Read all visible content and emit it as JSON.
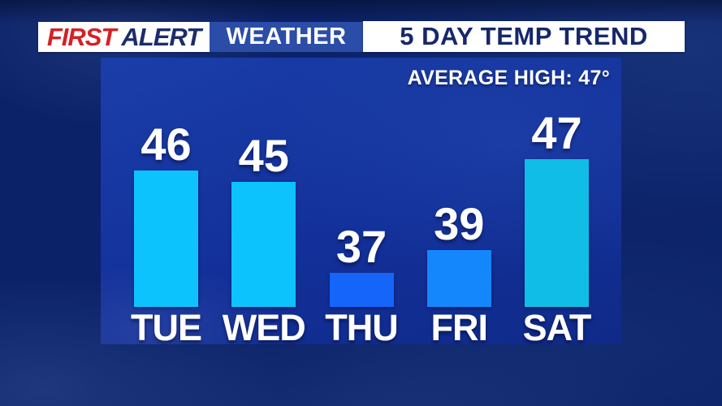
{
  "header": {
    "brand_first": "FIRST",
    "brand_alert": "ALERT",
    "brand_suffix": "WEATHER",
    "title": "5 DAY TEMP TREND"
  },
  "annotation": "AVERAGE HIGH: 47°",
  "colors": {
    "brand_red": "#D42127",
    "brand_navy": "#1B2D69",
    "header_blue": "#2B4DA8",
    "panel_blue": "#13309A",
    "background_navy": "#0B2268",
    "text_white": "#FFFFFF"
  },
  "chart_data": {
    "type": "bar",
    "title": "5 DAY TEMP TREND",
    "annotation": "AVERAGE HIGH: 47°",
    "average_high": 47,
    "categories": [
      "TUE",
      "WED",
      "THU",
      "FRI",
      "SAT"
    ],
    "values": [
      46,
      45,
      37,
      39,
      47
    ],
    "unit": "°F",
    "bar_colors": [
      "#0DC3FE",
      "#0DC3FE",
      "#1565FA",
      "#1487FC",
      "#10BDE7"
    ],
    "ylim": [
      34,
      50
    ],
    "grid": false,
    "legend": false,
    "value_labels": "above-bars",
    "category_labels": "below-bars"
  }
}
